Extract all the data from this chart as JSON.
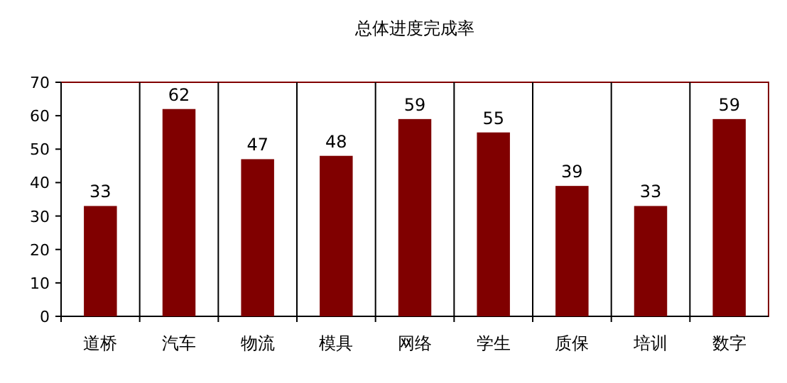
{
  "chart_data": {
    "type": "bar",
    "title": "总体进度完成率",
    "categories": [
      "道桥",
      "汽车",
      "物流",
      "模具",
      "网络",
      "学生",
      "质保",
      "培训",
      "数字"
    ],
    "values": [
      33,
      62,
      47,
      48,
      59,
      55,
      39,
      33,
      59
    ],
    "color": "#800000",
    "ylim": [
      0,
      70
    ],
    "yticks": [
      0,
      10,
      20,
      30,
      40,
      50,
      60,
      70
    ],
    "grid": "x",
    "data_labels": true
  }
}
